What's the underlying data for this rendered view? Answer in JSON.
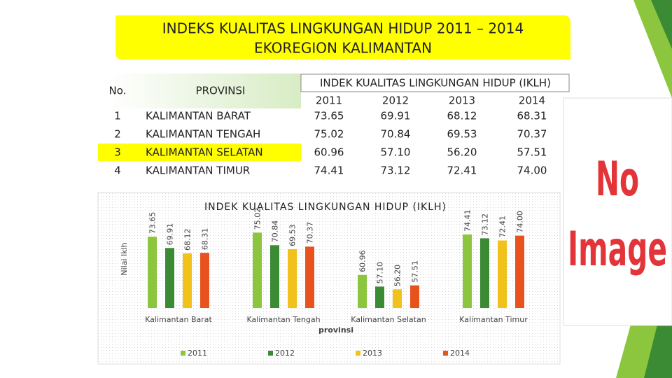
{
  "header": {
    "title_line1": "INDEKS KUALITAS LINGKUNGAN HIDUP 2011 – 2014",
    "title_line2": "EKOREGION KALIMANTAN"
  },
  "table": {
    "col_no": "No.",
    "col_province": "PROVINSI",
    "col_index": "INDEK KUALITAS LINGKUNGAN HIDUP (IKLH)",
    "years": [
      "2011",
      "2012",
      "2013",
      "2014"
    ],
    "rows": [
      [
        "1",
        "KALIMANTAN BARAT",
        "73.65",
        "69.91",
        "68.12",
        "68.31"
      ],
      [
        "2",
        "KALIMANTAN TENGAH",
        "75.02",
        "70.84",
        "69.53",
        "70.37"
      ],
      [
        "3",
        "KALIMANTAN SELATAN",
        "60.96",
        "57.10",
        "56.20",
        "57.51"
      ],
      [
        "4",
        "KALIMANTAN TIMUR",
        "74.41",
        "73.12",
        "72.41",
        "74.00"
      ]
    ]
  },
  "placeholder": {
    "line1": "No",
    "line2": "Image"
  },
  "chart_data": {
    "type": "bar",
    "title": "INDEK KUALITAS LINGKUNGAN HIDUP (IKLH)",
    "x_label": "provinsi",
    "y_label": "Nilai Iklh",
    "categories": [
      "Kalimantan Barat",
      "Kalimantan Tengah",
      "Kalimantan Selatan",
      "Kalimantan Timur"
    ],
    "ylim": [
      50,
      86
    ],
    "legend": "bottom",
    "series": [
      {
        "name": "2011",
        "color": "#8cc63e",
        "values": [
          73.65,
          75.02,
          60.96,
          74.41
        ],
        "value_labels": [
          "73.65",
          "75.02",
          "60.96",
          "74.41"
        ]
      },
      {
        "name": "2012",
        "color": "#3b8a34",
        "values": [
          69.91,
          70.84,
          57.1,
          73.12
        ],
        "value_labels": [
          "69.91",
          "70.84",
          "57.10",
          "73.12"
        ]
      },
      {
        "name": "2013",
        "color": "#f1c21b",
        "values": [
          68.12,
          69.53,
          56.2,
          72.41
        ],
        "value_labels": [
          "68.12",
          "69.53",
          "56.20",
          "72.41"
        ]
      },
      {
        "name": "2014",
        "color": "#e8531d",
        "values": [
          68.31,
          70.37,
          57.51,
          74.0
        ],
        "value_labels": [
          "68.31",
          "70.37",
          "57.51",
          "74.00"
        ]
      }
    ]
  }
}
